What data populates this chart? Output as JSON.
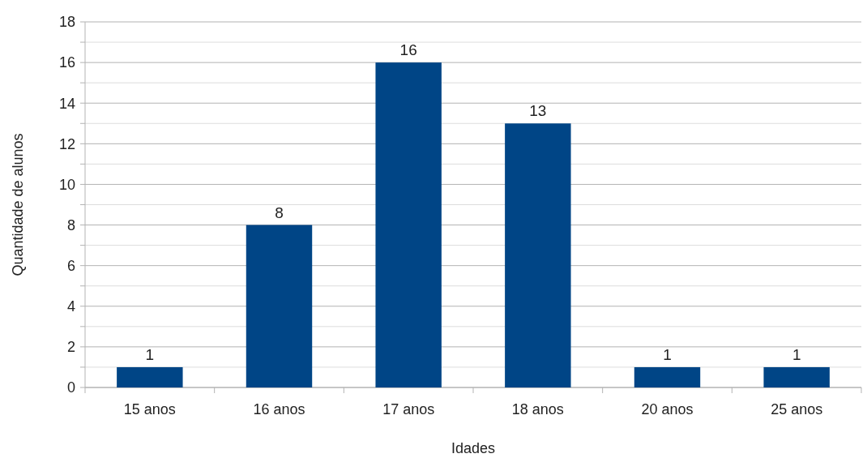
{
  "chart_data": {
    "type": "bar",
    "xlabel": "Idades",
    "ylabel": "Quantidade de alunos",
    "categories": [
      "15 anos",
      "16 anos",
      "17 anos",
      "18 anos",
      "20 anos",
      "25 anos"
    ],
    "values": [
      1,
      8,
      16,
      13,
      1,
      1
    ],
    "color": "#004586",
    "ylim": [
      0,
      18
    ],
    "yticks": [
      0,
      {
        "value": 1,
        "label": null
      },
      2,
      {
        "value": 3,
        "label": null
      },
      4,
      {
        "value": 5,
        "label": null
      },
      6,
      {
        "value": 7,
        "label": null
      },
      8,
      {
        "value": 9,
        "label": null
      },
      10,
      {
        "value": 11,
        "label": null
      },
      12,
      {
        "value": 13,
        "label": null
      },
      14,
      {
        "value": 15,
        "label": null
      },
      16,
      {
        "value": 17,
        "label": null
      },
      18
    ],
    "grid": true,
    "data_labels": true
  }
}
